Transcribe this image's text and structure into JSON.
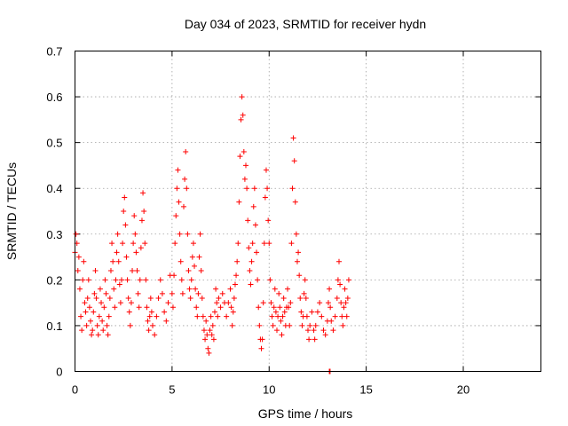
{
  "chart_data": {
    "type": "scatter",
    "title": "Day 034 of 2023, SRMTID for receiver hydn",
    "xlabel": "GPS time / hours",
    "ylabel": "SRMTID / TECUs",
    "xlim": [
      0,
      24
    ],
    "ylim": [
      0,
      0.7
    ],
    "xticks": [
      0,
      5,
      10,
      15,
      20
    ],
    "yticks": [
      0,
      0.1,
      0.2,
      0.3,
      0.4,
      0.5,
      0.6,
      0.7
    ],
    "xtick_labels": [
      "0",
      "5",
      "10",
      "15",
      "20"
    ],
    "ytick_labels": [
      "0",
      "0.1",
      "0.2",
      "0.3",
      "0.4",
      "0.5",
      "0.6",
      "0.7"
    ],
    "grid": true,
    "marker": "plus",
    "color": "#ff0000",
    "series": [
      {
        "name": "SRMTID",
        "points": [
          [
            0.0,
            0.26
          ],
          [
            0.05,
            0.3
          ],
          [
            0.1,
            0.28
          ],
          [
            0.15,
            0.22
          ],
          [
            0.2,
            0.25
          ],
          [
            0.25,
            0.18
          ],
          [
            0.3,
            0.12
          ],
          [
            0.35,
            0.09
          ],
          [
            0.4,
            0.2
          ],
          [
            0.45,
            0.24
          ],
          [
            0.5,
            0.15
          ],
          [
            0.55,
            0.13
          ],
          [
            0.6,
            0.1
          ],
          [
            0.65,
            0.16
          ],
          [
            0.7,
            0.2
          ],
          [
            0.75,
            0.14
          ],
          [
            0.8,
            0.11
          ],
          [
            0.85,
            0.08
          ],
          [
            0.9,
            0.09
          ],
          [
            0.95,
            0.13
          ],
          [
            1.0,
            0.17
          ],
          [
            1.05,
            0.22
          ],
          [
            1.1,
            0.16
          ],
          [
            1.15,
            0.1
          ],
          [
            1.2,
            0.08
          ],
          [
            1.25,
            0.12
          ],
          [
            1.3,
            0.18
          ],
          [
            1.35,
            0.15
          ],
          [
            1.4,
            0.11
          ],
          [
            1.45,
            0.09
          ],
          [
            1.5,
            0.14
          ],
          [
            1.55,
            0.2
          ],
          [
            1.6,
            0.17
          ],
          [
            1.65,
            0.1
          ],
          [
            1.7,
            0.08
          ],
          [
            1.75,
            0.12
          ],
          [
            1.8,
            0.16
          ],
          [
            1.85,
            0.22
          ],
          [
            1.9,
            0.28
          ],
          [
            1.95,
            0.24
          ],
          [
            2.0,
            0.18
          ],
          [
            2.05,
            0.14
          ],
          [
            2.1,
            0.2
          ],
          [
            2.15,
            0.26
          ],
          [
            2.2,
            0.3
          ],
          [
            2.25,
            0.24
          ],
          [
            2.3,
            0.19
          ],
          [
            2.35,
            0.15
          ],
          [
            2.4,
            0.2
          ],
          [
            2.45,
            0.28
          ],
          [
            2.5,
            0.35
          ],
          [
            2.55,
            0.38
          ],
          [
            2.6,
            0.32
          ],
          [
            2.65,
            0.25
          ],
          [
            2.7,
            0.2
          ],
          [
            2.75,
            0.16
          ],
          [
            2.8,
            0.13
          ],
          [
            2.85,
            0.1
          ],
          [
            2.9,
            0.15
          ],
          [
            2.95,
            0.22
          ],
          [
            3.0,
            0.28
          ],
          [
            3.05,
            0.34
          ],
          [
            3.1,
            0.3
          ],
          [
            3.15,
            0.26
          ],
          [
            3.2,
            0.22
          ],
          [
            3.25,
            0.17
          ],
          [
            3.3,
            0.14
          ],
          [
            3.35,
            0.2
          ],
          [
            3.4,
            0.27
          ],
          [
            3.45,
            0.33
          ],
          [
            3.5,
            0.39
          ],
          [
            3.55,
            0.35
          ],
          [
            3.6,
            0.28
          ],
          [
            3.65,
            0.2
          ],
          [
            3.7,
            0.14
          ],
          [
            3.75,
            0.11
          ],
          [
            3.8,
            0.09
          ],
          [
            3.85,
            0.12
          ],
          [
            3.9,
            0.16
          ],
          [
            3.95,
            0.13
          ],
          [
            4.0,
            0.1
          ],
          [
            4.1,
            0.08
          ],
          [
            4.2,
            0.12
          ],
          [
            4.3,
            0.16
          ],
          [
            4.4,
            0.2
          ],
          [
            4.5,
            0.17
          ],
          [
            4.6,
            0.13
          ],
          [
            4.7,
            0.11
          ],
          [
            4.8,
            0.15
          ],
          [
            4.9,
            0.21
          ],
          [
            5.0,
            0.17
          ],
          [
            5.05,
            0.14
          ],
          [
            5.1,
            0.21
          ],
          [
            5.15,
            0.28
          ],
          [
            5.2,
            0.34
          ],
          [
            5.25,
            0.4
          ],
          [
            5.3,
            0.44
          ],
          [
            5.35,
            0.37
          ],
          [
            5.4,
            0.3
          ],
          [
            5.45,
            0.24
          ],
          [
            5.5,
            0.2
          ],
          [
            5.55,
            0.17
          ],
          [
            5.6,
            0.36
          ],
          [
            5.65,
            0.42
          ],
          [
            5.7,
            0.48
          ],
          [
            5.75,
            0.4
          ],
          [
            5.8,
            0.3
          ],
          [
            5.85,
            0.22
          ],
          [
            5.9,
            0.18
          ],
          [
            5.95,
            0.16
          ],
          [
            6.0,
            0.2
          ],
          [
            6.05,
            0.25
          ],
          [
            6.1,
            0.28
          ],
          [
            6.15,
            0.23
          ],
          [
            6.2,
            0.18
          ],
          [
            6.25,
            0.14
          ],
          [
            6.3,
            0.12
          ],
          [
            6.35,
            0.17
          ],
          [
            6.4,
            0.25
          ],
          [
            6.45,
            0.3
          ],
          [
            6.5,
            0.22
          ],
          [
            6.55,
            0.16
          ],
          [
            6.6,
            0.12
          ],
          [
            6.65,
            0.09
          ],
          [
            6.7,
            0.07
          ],
          [
            6.75,
            0.11
          ],
          [
            6.8,
            0.08
          ],
          [
            6.85,
            0.05
          ],
          [
            6.9,
            0.04
          ],
          [
            6.95,
            0.09
          ],
          [
            7.0,
            0.12
          ],
          [
            7.05,
            0.08
          ],
          [
            7.1,
            0.1
          ],
          [
            7.15,
            0.07
          ],
          [
            7.2,
            0.13
          ],
          [
            7.25,
            0.18
          ],
          [
            7.3,
            0.15
          ],
          [
            7.35,
            0.12
          ],
          [
            7.4,
            0.16
          ],
          [
            7.5,
            0.14
          ],
          [
            7.6,
            0.17
          ],
          [
            7.7,
            0.15
          ],
          [
            7.8,
            0.12
          ],
          [
            7.9,
            0.15
          ],
          [
            8.0,
            0.18
          ],
          [
            8.05,
            0.14
          ],
          [
            8.1,
            0.1
          ],
          [
            8.15,
            0.13
          ],
          [
            8.2,
            0.16
          ],
          [
            8.25,
            0.19
          ],
          [
            8.3,
            0.21
          ],
          [
            8.35,
            0.24
          ],
          [
            8.4,
            0.28
          ],
          [
            8.45,
            0.37
          ],
          [
            8.5,
            0.47
          ],
          [
            8.55,
            0.55
          ],
          [
            8.6,
            0.6
          ],
          [
            8.65,
            0.56
          ],
          [
            8.7,
            0.48
          ],
          [
            8.75,
            0.42
          ],
          [
            8.8,
            0.45
          ],
          [
            8.85,
            0.4
          ],
          [
            8.9,
            0.33
          ],
          [
            8.95,
            0.27
          ],
          [
            9.0,
            0.22
          ],
          [
            9.05,
            0.19
          ],
          [
            9.1,
            0.24
          ],
          [
            9.15,
            0.28
          ],
          [
            9.2,
            0.36
          ],
          [
            9.25,
            0.4
          ],
          [
            9.3,
            0.32
          ],
          [
            9.35,
            0.26
          ],
          [
            9.4,
            0.2
          ],
          [
            9.45,
            0.14
          ],
          [
            9.5,
            0.1
          ],
          [
            9.55,
            0.07
          ],
          [
            9.6,
            0.05
          ],
          [
            9.65,
            0.07
          ],
          [
            9.7,
            0.15
          ],
          [
            9.75,
            0.28
          ],
          [
            9.8,
            0.38
          ],
          [
            9.85,
            0.44
          ],
          [
            9.9,
            0.4
          ],
          [
            9.95,
            0.33
          ],
          [
            10.0,
            0.28
          ],
          [
            10.05,
            0.2
          ],
          [
            10.1,
            0.15
          ],
          [
            10.15,
            0.12
          ],
          [
            10.2,
            0.1
          ],
          [
            10.25,
            0.14
          ],
          [
            10.3,
            0.18
          ],
          [
            10.35,
            0.13
          ],
          [
            10.4,
            0.09
          ],
          [
            10.45,
            0.12
          ],
          [
            10.5,
            0.17
          ],
          [
            10.55,
            0.14
          ],
          [
            10.6,
            0.11
          ],
          [
            10.65,
            0.08
          ],
          [
            10.7,
            0.12
          ],
          [
            10.75,
            0.16
          ],
          [
            10.8,
            0.13
          ],
          [
            10.85,
            0.1
          ],
          [
            10.9,
            0.14
          ],
          [
            10.95,
            0.18
          ],
          [
            11.0,
            0.14
          ],
          [
            11.05,
            0.1
          ],
          [
            11.1,
            0.15
          ],
          [
            11.15,
            0.28
          ],
          [
            11.2,
            0.4
          ],
          [
            11.25,
            0.51
          ],
          [
            11.3,
            0.46
          ],
          [
            11.35,
            0.37
          ],
          [
            11.4,
            0.3
          ],
          [
            11.45,
            0.24
          ],
          [
            11.5,
            0.26
          ],
          [
            11.55,
            0.21
          ],
          [
            11.6,
            0.16
          ],
          [
            11.65,
            0.13
          ],
          [
            11.7,
            0.1
          ],
          [
            11.75,
            0.12
          ],
          [
            11.8,
            0.17
          ],
          [
            11.85,
            0.2
          ],
          [
            11.9,
            0.16
          ],
          [
            11.95,
            0.12
          ],
          [
            12.0,
            0.09
          ],
          [
            12.05,
            0.07
          ],
          [
            12.1,
            0.1
          ],
          [
            12.2,
            0.13
          ],
          [
            12.3,
            0.09
          ],
          [
            12.35,
            0.07
          ],
          [
            12.4,
            0.1
          ],
          [
            12.5,
            0.13
          ],
          [
            12.6,
            0.15
          ],
          [
            12.7,
            0.12
          ],
          [
            12.8,
            0.09
          ],
          [
            12.9,
            0.08
          ],
          [
            13.0,
            0.11
          ],
          [
            13.05,
            0.15
          ],
          [
            13.1,
            0.18
          ],
          [
            13.15,
            0.14
          ],
          [
            13.2,
            0.11
          ],
          [
            13.3,
            0.09
          ],
          [
            13.4,
            0.12
          ],
          [
            13.5,
            0.16
          ],
          [
            13.55,
            0.2
          ],
          [
            13.6,
            0.24
          ],
          [
            13.65,
            0.19
          ],
          [
            13.7,
            0.15
          ],
          [
            13.75,
            0.12
          ],
          [
            13.8,
            0.1
          ],
          [
            13.85,
            0.14
          ],
          [
            13.9,
            0.18
          ],
          [
            13.95,
            0.15
          ],
          [
            14.0,
            0.12
          ],
          [
            14.05,
            0.16
          ],
          [
            14.1,
            0.2
          ],
          [
            13.1,
            0.0
          ],
          [
            13.12,
            0.0
          ],
          [
            13.14,
            0.0
          ]
        ]
      }
    ]
  }
}
